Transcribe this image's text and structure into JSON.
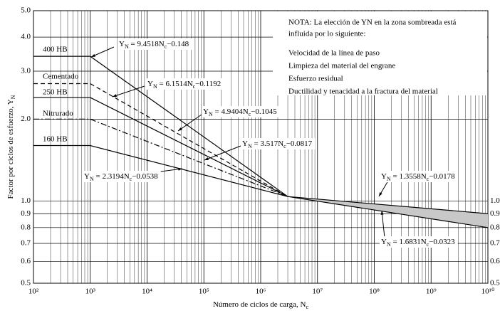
{
  "chart_data": {
    "type": "line",
    "x_label": [
      "Número de ciclos de carga, N",
      "c"
    ],
    "y_label": [
      "Factor por ciclos de esfuerzo, Y",
      "N"
    ],
    "log_x": true,
    "log_y": true,
    "grid": true,
    "minor_grid": true,
    "xlim": [
      100,
      10000000000
    ],
    "ylim": [
      0.5,
      5.0
    ],
    "xticks": [
      {
        "value": 100,
        "label": "10²"
      },
      {
        "value": 1000,
        "label": "10³"
      },
      {
        "value": 10000,
        "label": "10⁴"
      },
      {
        "value": 100000,
        "label": "10⁵"
      },
      {
        "value": 1000000,
        "label": "10⁶"
      },
      {
        "value": 10000000,
        "label": "10⁷"
      },
      {
        "value": 100000000,
        "label": "10⁸"
      },
      {
        "value": 1000000000,
        "label": "10⁹"
      },
      {
        "value": 10000000000,
        "label": "10¹⁰"
      }
    ],
    "yticks": [
      0.5,
      0.6,
      0.7,
      0.8,
      0.9,
      {
        "value": 1.0,
        "label": "1.0"
      },
      {
        "value": 2.0,
        "label": "2.0"
      },
      {
        "value": 3.0,
        "label": "3.0"
      },
      {
        "value": 4.0,
        "label": "4.0"
      },
      {
        "value": 5.0,
        "label": "5.0"
      }
    ],
    "series": [
      {
        "name": "400 HB",
        "color": "#000000",
        "style": "solid",
        "x": [
          100,
          1000,
          3000000
        ],
        "values": [
          3.4,
          3.4,
          1.04
        ],
        "equation": [
          "Y",
          "N",
          " = 9.4518N",
          "c",
          "−0.148"
        ]
      },
      {
        "name": "Cementado",
        "color": "#000000",
        "style": "dashed",
        "x": [
          100,
          1000,
          3000000
        ],
        "values": [
          2.7,
          2.7,
          1.04
        ],
        "equation": [
          "Y",
          "N",
          " = 6.1514N",
          "c",
          "−0.1192"
        ]
      },
      {
        "name": "250 HB",
        "color": "#000000",
        "style": "solid",
        "x": [
          100,
          1000,
          3000000
        ],
        "values": [
          2.4,
          2.4,
          1.04
        ],
        "equation": [
          "Y",
          "N",
          " = 4.9404N",
          "c",
          "−0.1045"
        ]
      },
      {
        "name": "Nitrurado",
        "color": "#000000",
        "style": "dashdot",
        "x": [
          100,
          1000,
          3000000
        ],
        "values": [
          2.0,
          2.0,
          1.04
        ],
        "equation": [
          "Y",
          "N",
          " = 3.517N",
          "c",
          "−0.0817"
        ]
      },
      {
        "name": "160 HB",
        "color": "#000000",
        "style": "solid",
        "x": [
          100,
          1000,
          3000000
        ],
        "values": [
          1.6,
          1.6,
          1.04
        ],
        "equation": [
          "Y",
          "N",
          " = 2.3194N",
          "c",
          "−0.0538"
        ]
      },
      {
        "color": "#000000",
        "style": "solid",
        "x": [
          3000000,
          10000000000
        ],
        "values": [
          1.04,
          0.9
        ],
        "equation": [
          "Y",
          "N",
          " = 1.3558N",
          "c",
          "−0.0178"
        ]
      },
      {
        "color": "#000000",
        "style": "solid",
        "x": [
          3000000,
          10000000000
        ],
        "values": [
          1.04,
          0.8
        ],
        "equation": [
          "Y",
          "N",
          " = 1.6831N",
          "c",
          "−0.0323"
        ]
      }
    ],
    "shade_between": [
      5,
      6
    ],
    "shade_color": "#c8c8c8",
    "note": [
      "NOTA: La elección de YN en la zona sombreada está",
      "influida por lo siguiente:",
      "Velocidad de la línea de paso",
      "Limpieza del material del engrane",
      "Esfuerzo residual",
      "Ductilidad y tenacidad a la fractura del material"
    ]
  }
}
